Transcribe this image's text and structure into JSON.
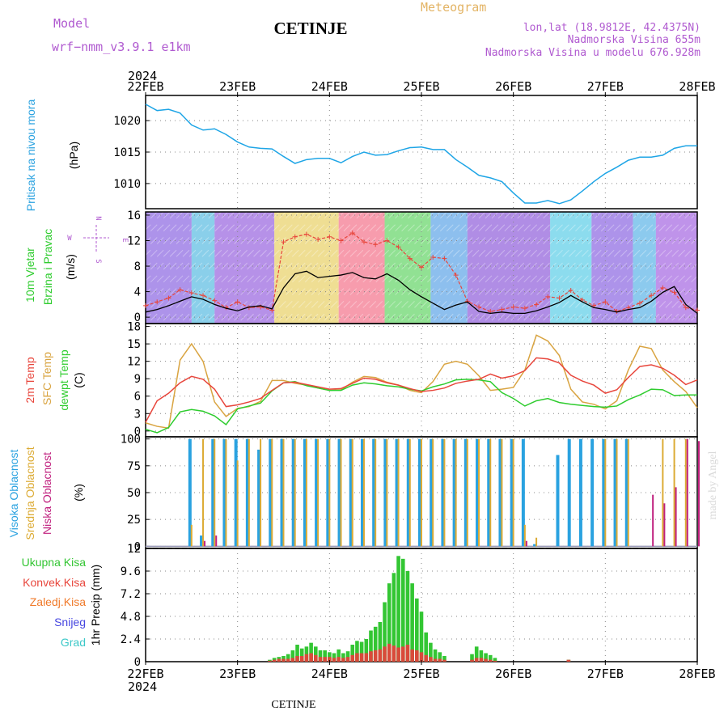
{
  "header": {
    "model_label": "Model",
    "model_name": "wrf−nmm_v3.9.1 e1km",
    "station": "CETINJE",
    "product": "Meteogram",
    "lonlat": "lon,lat (18.9812E, 42.4375N)",
    "altitude": "Nadmorska Visina 655m",
    "model_altitude": "Nadmorska Visina u modelu 676.928m",
    "footer_station": "CETINJE",
    "credit": "made by Angel"
  },
  "colors": {
    "pressure": "#1ea5e6",
    "t2m": "#e8463c",
    "sfc": "#d9a441",
    "dewpt": "#2ecc2e",
    "total": "#33c633",
    "convective": "#d94a3a",
    "high": "#2aa2e0",
    "mid": "#dcab34",
    "low": "#c0207e",
    "model_purple": "#a24dd0",
    "product_gold": "#e3b465"
  },
  "chart_data": [
    {
      "id": "pressure",
      "type": "line",
      "ylabel": "Pritisak na nivou mora",
      "unit": "(hPa)",
      "ylim": [
        1006,
        1024
      ],
      "yticks": [
        1010,
        1015,
        1020
      ],
      "x_axis": {
        "year": "2024",
        "ticks": [
          "22FEB",
          "23FEB",
          "24FEB",
          "25FEB",
          "26FEB",
          "27FEB",
          "28FEB"
        ],
        "range_days": [
          0,
          6
        ]
      },
      "x": [
        0,
        0.125,
        0.25,
        0.375,
        0.5,
        0.625,
        0.75,
        0.875,
        1.0,
        1.125,
        1.25,
        1.375,
        1.5,
        1.625,
        1.75,
        1.875,
        2.0,
        2.125,
        2.25,
        2.375,
        2.5,
        2.625,
        2.75,
        2.875,
        3.0,
        3.125,
        3.25,
        3.375,
        3.5,
        3.625,
        3.75,
        3.875,
        4.0,
        4.125,
        4.25,
        4.375,
        4.5,
        4.625,
        4.75,
        4.875,
        5.0,
        5.125,
        5.25,
        5.375,
        5.5,
        5.625,
        5.75,
        5.875,
        6.0
      ],
      "values": [
        1022.6,
        1021.6,
        1021.8,
        1021.2,
        1019.3,
        1018.5,
        1018.7,
        1017.8,
        1016.6,
        1015.8,
        1015.6,
        1015.5,
        1014.3,
        1013.2,
        1013.8,
        1014.0,
        1014.0,
        1013.3,
        1014.3,
        1015.0,
        1014.5,
        1014.6,
        1015.2,
        1015.7,
        1015.8,
        1015.4,
        1015.4,
        1013.8,
        1012.6,
        1011.3,
        1010.9,
        1010.3,
        1008.5,
        1006.9,
        1006.9,
        1007.3,
        1006.8,
        1007.4,
        1008.8,
        1010.3,
        1011.6,
        1012.6,
        1013.7,
        1014.2,
        1014.2,
        1014.5,
        1015.6,
        1016.0,
        1016.0
      ]
    },
    {
      "id": "wind",
      "type": "line",
      "ylabel": "10m Vjetar",
      "ylabel2": "Brzina i Pravac",
      "unit": "(m/s)",
      "compass": {
        "north": "N",
        "west": "W",
        "east": "E",
        "south": "S"
      },
      "ylim": [
        -1,
        16.5
      ],
      "yticks": [
        0,
        4,
        8,
        12,
        16
      ],
      "x": [
        0,
        0.125,
        0.25,
        0.375,
        0.5,
        0.625,
        0.75,
        0.875,
        1.0,
        1.125,
        1.25,
        1.375,
        1.5,
        1.625,
        1.75,
        1.875,
        2.0,
        2.125,
        2.25,
        2.375,
        2.5,
        2.625,
        2.75,
        2.875,
        3.0,
        3.125,
        3.25,
        3.375,
        3.5,
        3.625,
        3.75,
        3.875,
        4.0,
        4.125,
        4.25,
        4.375,
        4.5,
        4.625,
        4.75,
        4.875,
        5.0,
        5.125,
        5.25,
        5.375,
        5.5,
        5.625,
        5.75,
        5.875,
        6.0
      ],
      "series": [
        {
          "id": "speed",
          "values": [
            0.8,
            1.2,
            1.8,
            2.5,
            3.2,
            2.8,
            2.0,
            1.4,
            1.0,
            1.6,
            1.8,
            1.3,
            4.6,
            6.8,
            7.2,
            6.2,
            6.4,
            6.6,
            7.0,
            6.2,
            6.0,
            6.8,
            5.8,
            4.3,
            3.2,
            2.2,
            1.2,
            1.9,
            2.4,
            0.9,
            0.6,
            0.8,
            0.6,
            0.6,
            1.0,
            1.6,
            2.3,
            3.4,
            2.4,
            1.5,
            1.2,
            0.8,
            1.2,
            1.5,
            2.5,
            3.9,
            4.8,
            2.0,
            0.6
          ]
        },
        {
          "id": "gust",
          "values": [
            1.8,
            2.4,
            3.0,
            4.3,
            3.8,
            3.4,
            2.6,
            1.5,
            2.4,
            1.5,
            1.6,
            1.1,
            11.8,
            12.6,
            13.0,
            12.2,
            12.6,
            12.0,
            13.2,
            11.8,
            11.4,
            12.0,
            11.0,
            9.2,
            7.8,
            9.4,
            9.2,
            6.6,
            2.5,
            1.6,
            0.9,
            1.2,
            1.6,
            1.4,
            2.0,
            3.2,
            3.0,
            4.2,
            2.7,
            1.8,
            2.4,
            0.9,
            1.5,
            2.2,
            3.4,
            4.6,
            3.9,
            1.5,
            1.1
          ]
        }
      ]
    },
    {
      "id": "temperature",
      "type": "line",
      "ylabel": "2m Temp",
      "ylabel2": "SFC Temp",
      "ylabel3": "dewpt Temp",
      "unit": "(C)",
      "ylim": [
        -1,
        18.5
      ],
      "yticks": [
        0,
        3,
        6,
        9,
        12,
        15,
        18
      ],
      "x": [
        0,
        0.125,
        0.25,
        0.375,
        0.5,
        0.625,
        0.75,
        0.875,
        1.0,
        1.125,
        1.25,
        1.375,
        1.5,
        1.625,
        1.75,
        1.875,
        2.0,
        2.125,
        2.25,
        2.375,
        2.5,
        2.625,
        2.75,
        2.875,
        3.0,
        3.125,
        3.25,
        3.375,
        3.5,
        3.625,
        3.75,
        3.875,
        4.0,
        4.125,
        4.25,
        4.375,
        4.5,
        4.625,
        4.75,
        4.875,
        5.0,
        5.125,
        5.25,
        5.375,
        5.5,
        5.625,
        5.75,
        5.875,
        6.0
      ],
      "series": [
        {
          "id": "t2m",
          "values": [
            1.5,
            5.2,
            6.5,
            8.3,
            9.4,
            8.9,
            7.2,
            4.2,
            4.5,
            5.0,
            5.6,
            7.0,
            8.3,
            8.4,
            8.0,
            7.6,
            7.2,
            7.3,
            8.2,
            9.1,
            8.9,
            8.3,
            7.9,
            7.3,
            6.8,
            7.0,
            7.4,
            8.2,
            8.6,
            8.9,
            9.8,
            9.1,
            9.5,
            10.4,
            12.6,
            12.4,
            11.7,
            9.6,
            8.6,
            7.9,
            6.5,
            7.1,
            9.2,
            11.1,
            11.4,
            10.8,
            9.6,
            8.0,
            8.8
          ]
        },
        {
          "id": "sfc",
          "values": [
            1.4,
            0.8,
            0.5,
            12.2,
            15.0,
            12.0,
            5.0,
            2.5,
            3.9,
            4.2,
            5.1,
            8.7,
            8.7,
            8.2,
            7.9,
            7.4,
            7.0,
            7.1,
            8.4,
            9.4,
            9.2,
            8.4,
            7.9,
            7.0,
            6.6,
            8.5,
            11.5,
            12.0,
            11.5,
            9.5,
            7.0,
            7.2,
            7.5,
            10.5,
            16.5,
            15.5,
            13.0,
            7.2,
            5.0,
            4.6,
            3.8,
            5.2,
            10.5,
            14.6,
            14.2,
            10.5,
            8.5,
            6.8,
            4.0
          ]
        },
        {
          "id": "dewpt",
          "values": [
            0.3,
            -0.3,
            0.6,
            3.3,
            3.7,
            3.4,
            2.6,
            1.1,
            3.8,
            4.3,
            4.8,
            6.9,
            8.3,
            8.5,
            7.8,
            7.4,
            7.0,
            7.0,
            7.9,
            8.3,
            8.1,
            7.8,
            7.6,
            7.2,
            6.9,
            7.6,
            8.1,
            8.8,
            8.9,
            8.8,
            8.5,
            6.6,
            5.6,
            4.3,
            5.2,
            5.6,
            4.9,
            4.6,
            4.4,
            4.2,
            4.1,
            4.3,
            5.4,
            6.2,
            7.2,
            7.1,
            6.1,
            6.2,
            6.2
          ]
        }
      ]
    },
    {
      "id": "clouds",
      "type": "bar",
      "ylabel": "Visoka Oblacnost",
      "ylabel2": "Srednja Oblacnost",
      "ylabel3": "Niska Oblacnost",
      "unit": "(%)",
      "ylim": [
        -2,
        102
      ],
      "yticks": [
        0,
        25,
        50,
        75,
        100
      ],
      "x": [
        0,
        0.125,
        0.25,
        0.375,
        0.5,
        0.625,
        0.75,
        0.875,
        1.0,
        1.125,
        1.25,
        1.375,
        1.5,
        1.625,
        1.75,
        1.875,
        2.0,
        2.125,
        2.25,
        2.375,
        2.5,
        2.625,
        2.75,
        2.875,
        3.0,
        3.125,
        3.25,
        3.375,
        3.5,
        3.625,
        3.75,
        3.875,
        4.0,
        4.125,
        4.25,
        4.375,
        4.5,
        4.625,
        4.75,
        4.875,
        5.0,
        5.125,
        5.25,
        5.375,
        5.5,
        5.625,
        5.75,
        5.875,
        6.0
      ],
      "series": [
        {
          "id": "high",
          "values": [
            0,
            0,
            0,
            0,
            100,
            10,
            100,
            100,
            100,
            100,
            90,
            100,
            100,
            100,
            100,
            100,
            100,
            100,
            100,
            100,
            100,
            100,
            100,
            100,
            100,
            100,
            100,
            100,
            100,
            100,
            100,
            100,
            100,
            100,
            2,
            0,
            85,
            100,
            100,
            100,
            100,
            100,
            100,
            0,
            0,
            0,
            0,
            0,
            0
          ]
        },
        {
          "id": "mid",
          "values": [
            0,
            0,
            0,
            0,
            20,
            100,
            100,
            100,
            80,
            100,
            100,
            100,
            100,
            100,
            100,
            100,
            100,
            100,
            100,
            100,
            100,
            100,
            100,
            100,
            100,
            100,
            100,
            100,
            100,
            100,
            100,
            100,
            100,
            20,
            8,
            0,
            0,
            0,
            0,
            0,
            100,
            100,
            100,
            0,
            0,
            100,
            100,
            100,
            0
          ]
        },
        {
          "id": "low",
          "values": [
            0,
            0,
            0,
            0,
            0,
            5,
            10,
            0,
            0,
            0,
            0,
            0,
            0,
            0,
            0,
            0,
            0,
            0,
            0,
            0,
            0,
            0,
            0,
            0,
            0,
            0,
            0,
            0,
            0,
            0,
            0,
            0,
            0,
            5,
            0,
            0,
            0,
            0,
            0,
            0,
            0,
            0,
            0,
            0,
            48,
            40,
            55,
            100,
            98
          ]
        }
      ]
    },
    {
      "id": "precip",
      "type": "bar",
      "ylabel": "1hr Precip (mm)",
      "legend": [
        {
          "id": "total",
          "label": "Ukupna Kisa",
          "color": "#33c633"
        },
        {
          "id": "convective",
          "label": "Konvek.Kisa",
          "color": "#e8463c"
        },
        {
          "id": "freezing",
          "label": "Zaledj.Kisa",
          "color": "#f07a2a"
        },
        {
          "id": "snow",
          "label": "Snijeg",
          "color": "#4646e0"
        },
        {
          "id": "hail",
          "label": "Grad",
          "color": "#3cc8c8"
        }
      ],
      "ylim": [
        0,
        12
      ],
      "yticks": [
        0,
        2.4,
        4.8,
        7.2,
        9.6,
        12
      ],
      "x": [
        1.35,
        1.4,
        1.45,
        1.5,
        1.55,
        1.6,
        1.65,
        1.7,
        1.75,
        1.8,
        1.85,
        1.9,
        1.95,
        2.0,
        2.05,
        2.1,
        2.15,
        2.2,
        2.25,
        2.3,
        2.35,
        2.4,
        2.45,
        2.5,
        2.55,
        2.6,
        2.65,
        2.7,
        2.75,
        2.8,
        2.85,
        2.9,
        2.95,
        3.0,
        3.05,
        3.1,
        3.15,
        3.2,
        3.25,
        3.55,
        3.6,
        3.65,
        3.7,
        3.75,
        3.8,
        4.6
      ],
      "series": [
        {
          "id": "total",
          "values": [
            0.2,
            0.4,
            0.5,
            0.6,
            0.8,
            1.2,
            1.8,
            1.4,
            1.6,
            2.0,
            1.6,
            1.2,
            1.2,
            1.0,
            0.9,
            1.3,
            0.9,
            1.1,
            1.8,
            2.2,
            2.1,
            2.4,
            3.3,
            3.7,
            4.2,
            6.3,
            8.3,
            9.4,
            11.2,
            10.9,
            9.6,
            8.3,
            6.7,
            5.3,
            3.1,
            2.0,
            1.3,
            1.0,
            0.6,
            0.8,
            1.6,
            1.2,
            0.9,
            0.7,
            0.4,
            0.2
          ]
        },
        {
          "id": "convective",
          "values": [
            0.1,
            0.2,
            0.3,
            0.3,
            0.3,
            0.4,
            0.6,
            0.6,
            0.8,
            0.9,
            0.7,
            0.5,
            0.5,
            0.5,
            0.4,
            0.5,
            0.4,
            0.5,
            0.7,
            0.9,
            0.9,
            0.9,
            1.1,
            1.2,
            1.3,
            1.6,
            1.9,
            1.7,
            1.5,
            1.6,
            1.8,
            1.3,
            1.2,
            1.0,
            0.7,
            0.5,
            0.3,
            0.3,
            0.2,
            0.2,
            0.4,
            0.4,
            0.3,
            0.2,
            0.1,
            0.2
          ]
        }
      ]
    }
  ]
}
